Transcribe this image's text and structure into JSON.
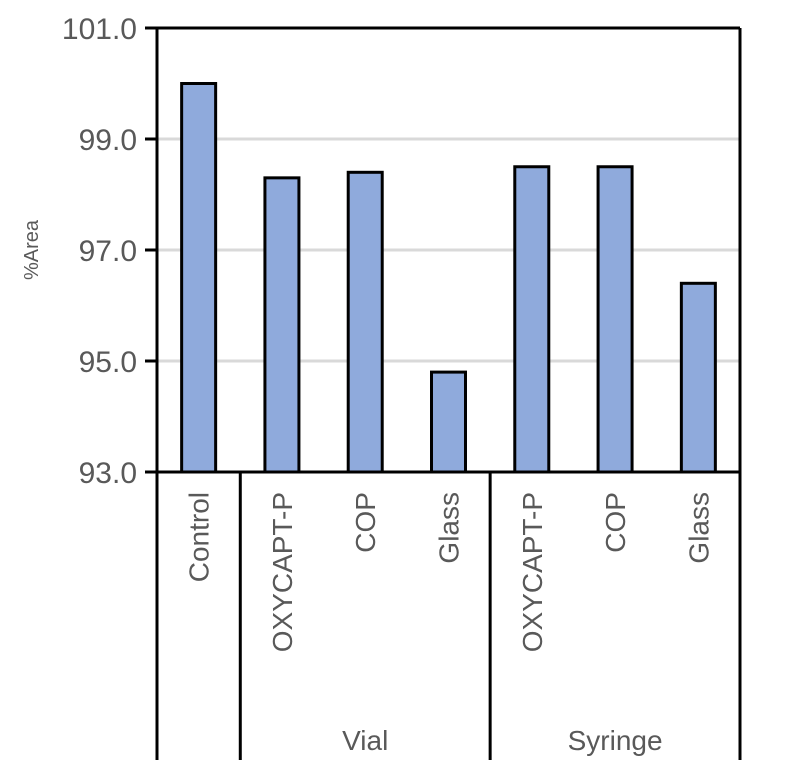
{
  "chart_data": {
    "type": "bar",
    "title": "",
    "xlabel": "",
    "ylabel": "%Area",
    "ylim": [
      93.0,
      101.0
    ],
    "yticks": [
      "93.0",
      "95.0",
      "97.0",
      "99.0",
      "101.0"
    ],
    "grid": true,
    "legend": null,
    "bar_color": "#8FAADC",
    "categories": [
      "Control",
      "OXYCAPT-P",
      "COP",
      "Glass",
      "OXYCAPT-P",
      "COP",
      "Glass"
    ],
    "groups": [
      {
        "label": "",
        "categories": [
          "Control"
        ]
      },
      {
        "label": "Vial",
        "categories": [
          "OXYCAPT-P",
          "COP",
          "Glass"
        ]
      },
      {
        "label": "Syringe",
        "categories": [
          "OXYCAPT-P",
          "COP",
          "Glass"
        ]
      }
    ],
    "values": [
      100.0,
      98.3,
      98.4,
      94.8,
      98.5,
      98.5,
      96.4
    ]
  }
}
